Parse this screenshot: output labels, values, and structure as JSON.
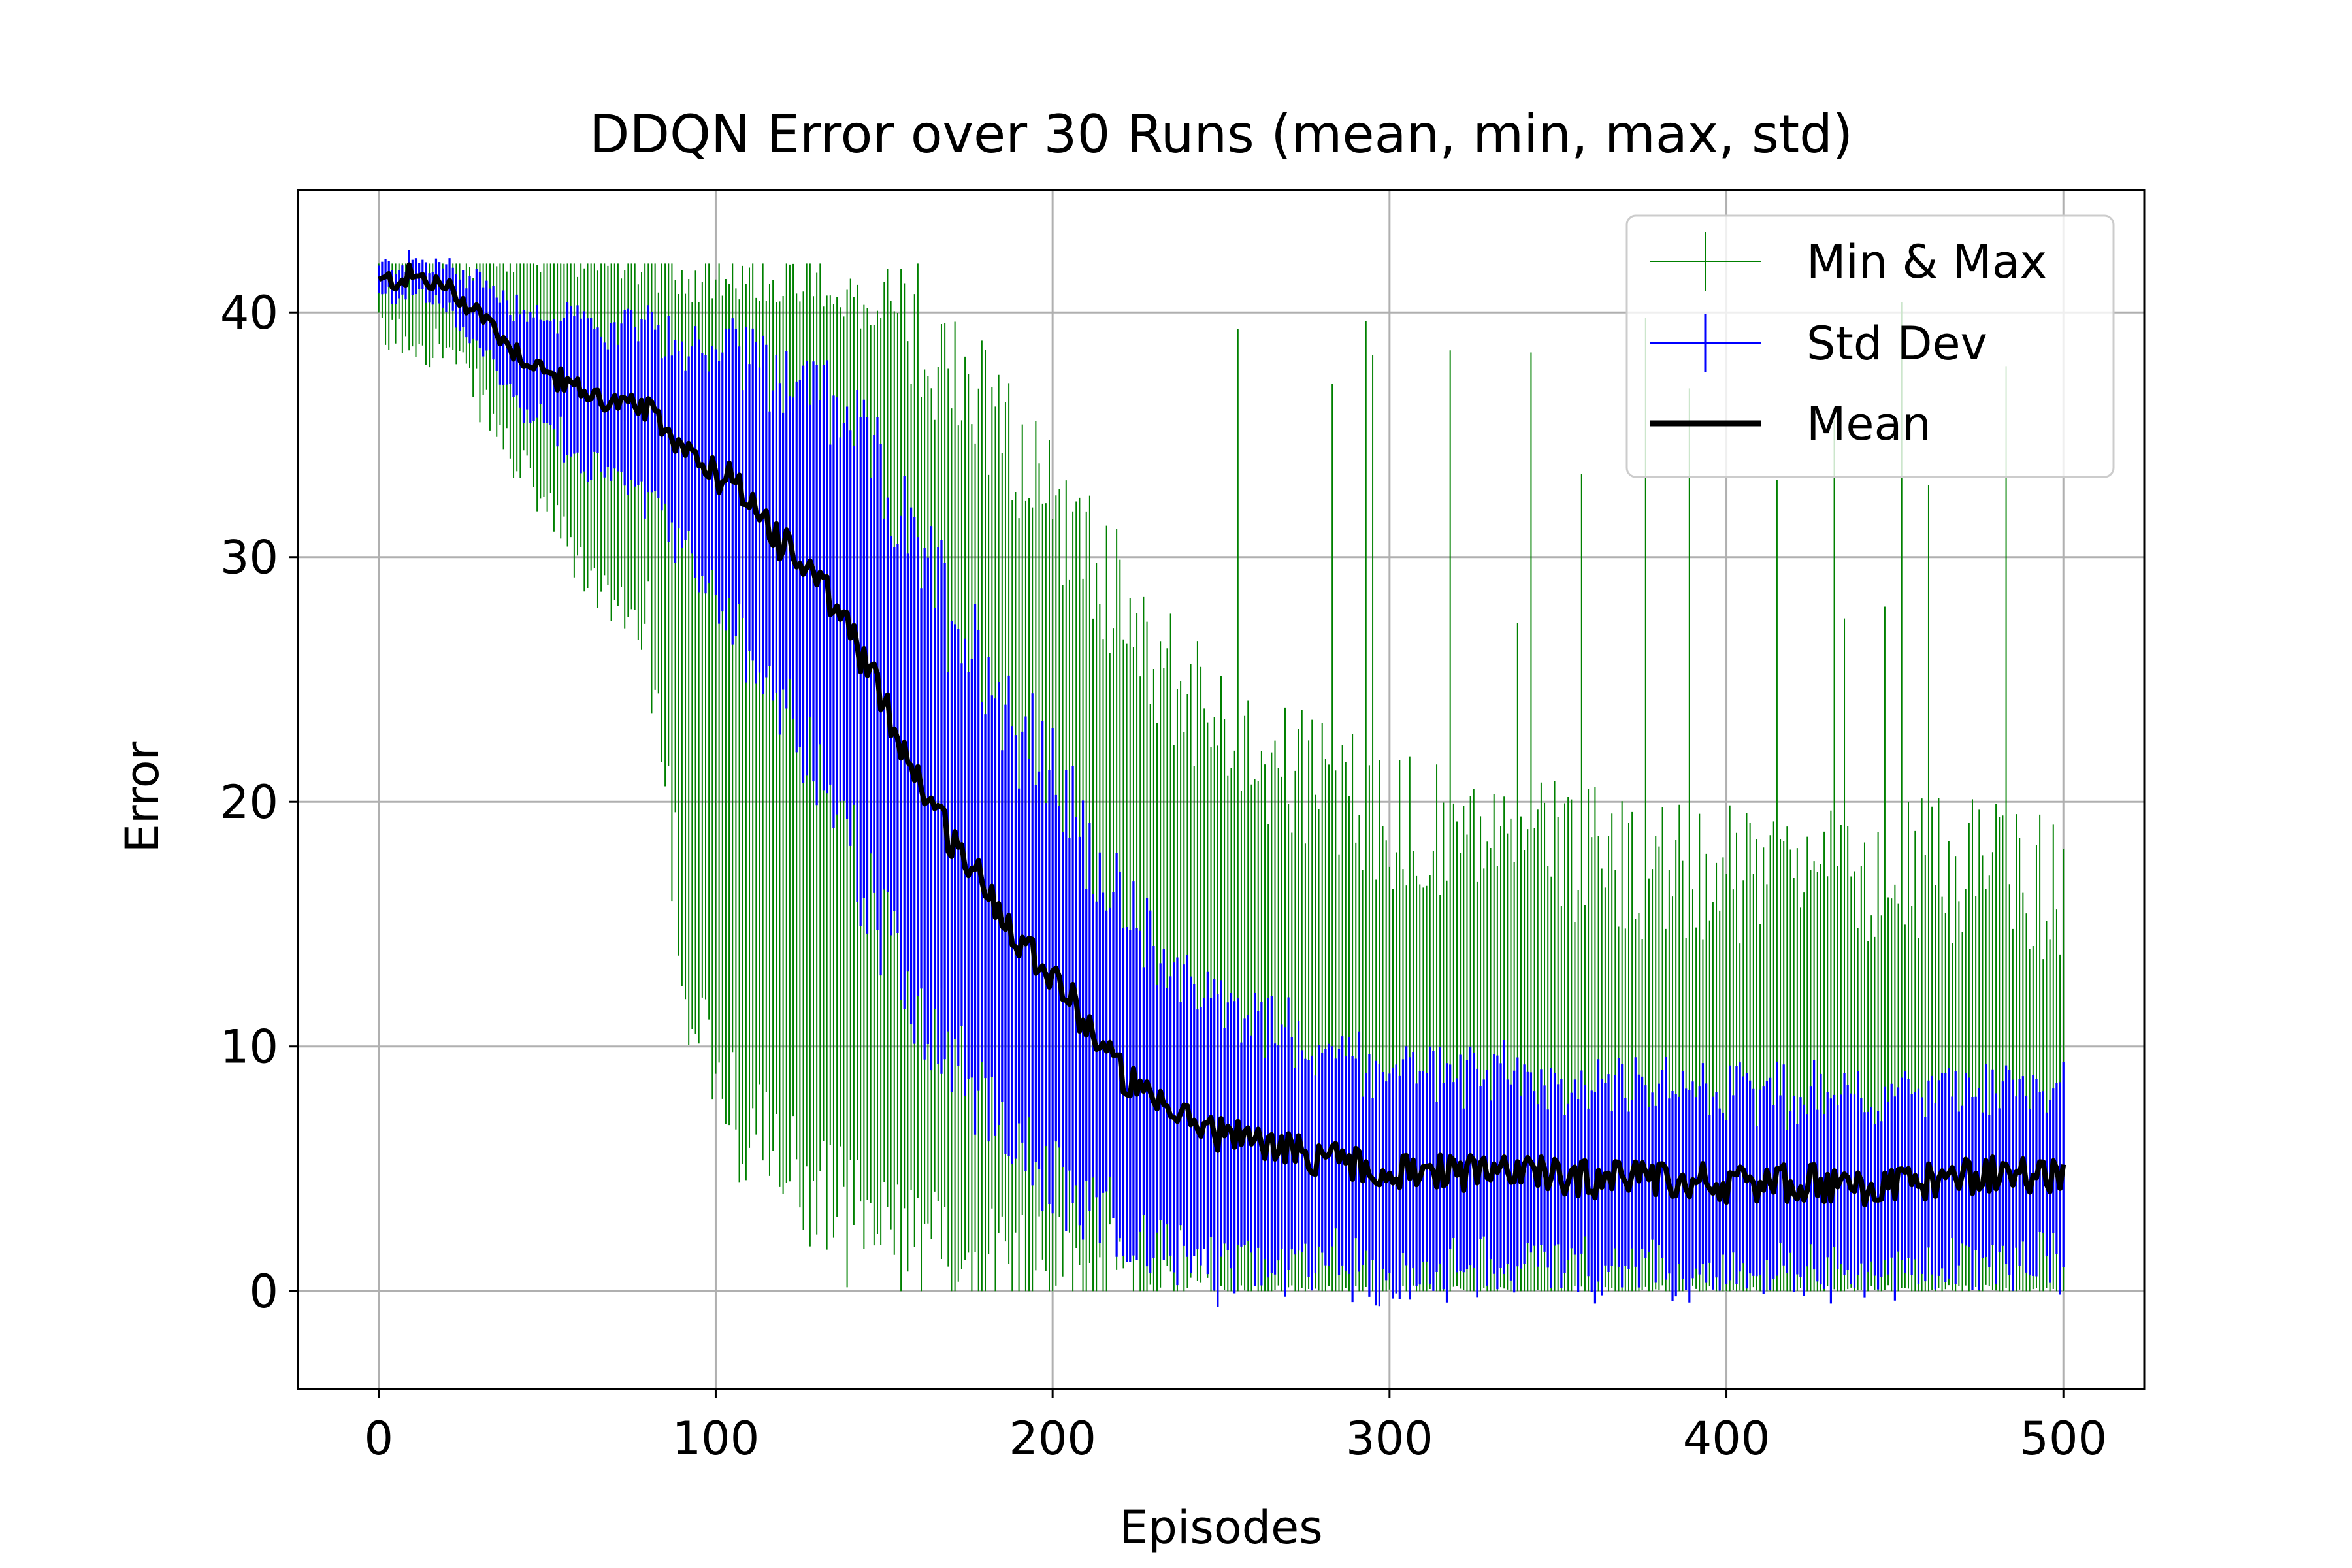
{
  "chart_data": {
    "type": "line",
    "title": "DDQN Error over 30 Runs (mean, min, max, std)",
    "xlabel": "Episodes",
    "ylabel": "Error",
    "xlim": [
      -24,
      524
    ],
    "ylim": [
      -4,
      45
    ],
    "grid": true,
    "legend_position": "top-right",
    "x_ticks": [
      0,
      100,
      200,
      300,
      400,
      500
    ],
    "y_ticks": [
      0,
      10,
      20,
      30,
      40
    ],
    "colors": {
      "minmax": "#008000",
      "std": "#0000ff",
      "mean": "#000000"
    },
    "series": [
      {
        "name": "Mean",
        "x": [
          0,
          10,
          20,
          30,
          40,
          50,
          60,
          70,
          80,
          90,
          100,
          110,
          120,
          130,
          140,
          150,
          160,
          170,
          180,
          190,
          200,
          210,
          220,
          230,
          240,
          250,
          260,
          270,
          280,
          290,
          300,
          320,
          340,
          360,
          380,
          400,
          420,
          440,
          460,
          480,
          500
        ],
        "values": [
          41.2,
          41.5,
          41.0,
          40.0,
          38.5,
          37.5,
          36.8,
          36.3,
          36.0,
          34.5,
          33.5,
          32.5,
          30.5,
          29.0,
          27.0,
          24.0,
          21.0,
          18.5,
          16.5,
          14.5,
          13.0,
          11.0,
          9.0,
          7.5,
          7.0,
          6.5,
          6.0,
          5.8,
          5.5,
          5.3,
          5.0,
          4.9,
          4.8,
          4.6,
          4.5,
          4.4,
          4.4,
          4.3,
          4.5,
          4.8,
          4.8
        ]
      },
      {
        "name": "Std Dev",
        "x": [
          0,
          10,
          20,
          30,
          40,
          50,
          60,
          70,
          80,
          90,
          100,
          110,
          120,
          130,
          140,
          150,
          160,
          170,
          180,
          190,
          200,
          210,
          220,
          230,
          240,
          250,
          260,
          270,
          280,
          290,
          300,
          320,
          340,
          360,
          380,
          400,
          420,
          440,
          460,
          480,
          500
        ],
        "std": [
          0.6,
          0.6,
          0.8,
          1.3,
          1.8,
          2.2,
          2.7,
          3.0,
          3.3,
          4.0,
          5.0,
          6.0,
          6.8,
          7.5,
          8.3,
          8.8,
          9.0,
          9.2,
          9.0,
          8.5,
          8.0,
          7.3,
          6.6,
          6.0,
          5.6,
          5.2,
          4.9,
          4.6,
          4.4,
          4.2,
          4.0,
          3.9,
          3.8,
          3.7,
          3.7,
          3.6,
          3.6,
          3.5,
          3.5,
          3.5,
          3.5
        ]
      },
      {
        "name": "Min & Max",
        "x": [
          0,
          10,
          20,
          30,
          40,
          50,
          60,
          70,
          80,
          90,
          100,
          110,
          120,
          130,
          140,
          150,
          160,
          170,
          180,
          190,
          200,
          210,
          220,
          230,
          240,
          250,
          260,
          270,
          280,
          290,
          300,
          320,
          340,
          360,
          380,
          400,
          420,
          440,
          460,
          480,
          500
        ],
        "min": [
          39.0,
          39.0,
          38.5,
          36.5,
          34.0,
          32.0,
          29.5,
          28.0,
          27.0,
          15.0,
          8.0,
          6.0,
          5.0,
          4.0,
          3.0,
          2.0,
          1.5,
          1.0,
          1.0,
          1.0,
          1.0,
          0.5,
          0.3,
          0.0,
          0.0,
          0.0,
          0.0,
          0.0,
          0.0,
          0.0,
          0.0,
          0.0,
          0.0,
          0.0,
          0.0,
          0.0,
          0.0,
          0.0,
          0.0,
          0.0,
          0.0
        ],
        "max": [
          42.0,
          42.0,
          42.0,
          42.0,
          42.0,
          42.0,
          42.0,
          42.0,
          41.5,
          41.0,
          41.0,
          41.0,
          41.0,
          41.0,
          40.0,
          39.0,
          38.0,
          36.5,
          35.0,
          33.0,
          31.0,
          29.0,
          27.0,
          25.0,
          23.0,
          22.0,
          21.0,
          20.0,
          19.5,
          19.0,
          18.0,
          17.5,
          17.0,
          16.5,
          16.0,
          16.0,
          15.5,
          15.5,
          16.0,
          16.0,
          15.0
        ]
      }
    ],
    "legend": [
      "Min & Max",
      "Std Dev",
      "Mean"
    ]
  }
}
